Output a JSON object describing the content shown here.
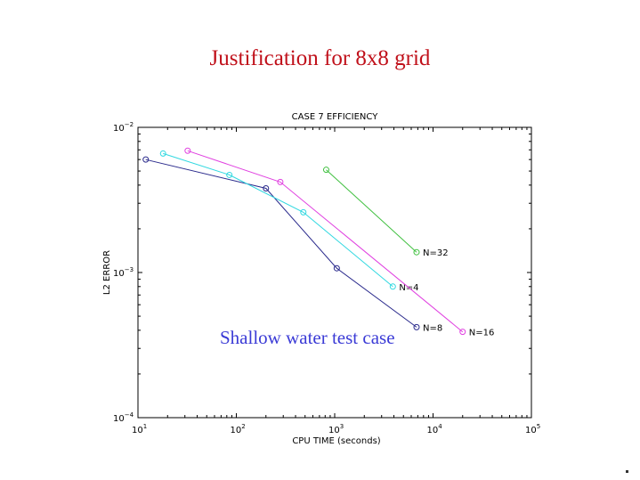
{
  "slide": {
    "title": "Justification for 8x8 grid",
    "annotation": "Shallow water test case"
  },
  "chart_data": {
    "type": "line",
    "title": "CASE 7  EFFICIENCY",
    "xlabel": "CPU  TIME  (seconds)",
    "ylabel": "L2  ERROR",
    "xscale": "log",
    "yscale": "log",
    "xlim": [
      10,
      100000
    ],
    "ylim": [
      0.0001,
      0.01
    ],
    "xticks": [
      {
        "base": "10",
        "exp": "1"
      },
      {
        "base": "10",
        "exp": "2"
      },
      {
        "base": "10",
        "exp": "3"
      },
      {
        "base": "10",
        "exp": "4"
      },
      {
        "base": "10",
        "exp": "5"
      }
    ],
    "yticks": [
      {
        "base": "10",
        "exp": "−4"
      },
      {
        "base": "10",
        "exp": "−3"
      },
      {
        "base": "10",
        "exp": "−2"
      }
    ],
    "grid": false,
    "series": [
      {
        "name": "N=8",
        "color": "#2a2a8c",
        "x": [
          12,
          200,
          1050,
          6800
        ],
        "y": [
          0.006,
          0.0038,
          0.00107,
          0.00042
        ]
      },
      {
        "name": "N=4",
        "color": "#30d8e0",
        "x": [
          18,
          85,
          480,
          3900
        ],
        "y": [
          0.0066,
          0.0047,
          0.0026,
          0.0008
        ]
      },
      {
        "name": "N=16",
        "color": "#e040e0",
        "x": [
          32,
          280,
          20000
        ],
        "y": [
          0.0069,
          0.0042,
          0.00039
        ]
      },
      {
        "name": "N=32",
        "color": "#40c040",
        "x": [
          820,
          6800
        ],
        "y": [
          0.0051,
          0.00138
        ]
      }
    ]
  }
}
